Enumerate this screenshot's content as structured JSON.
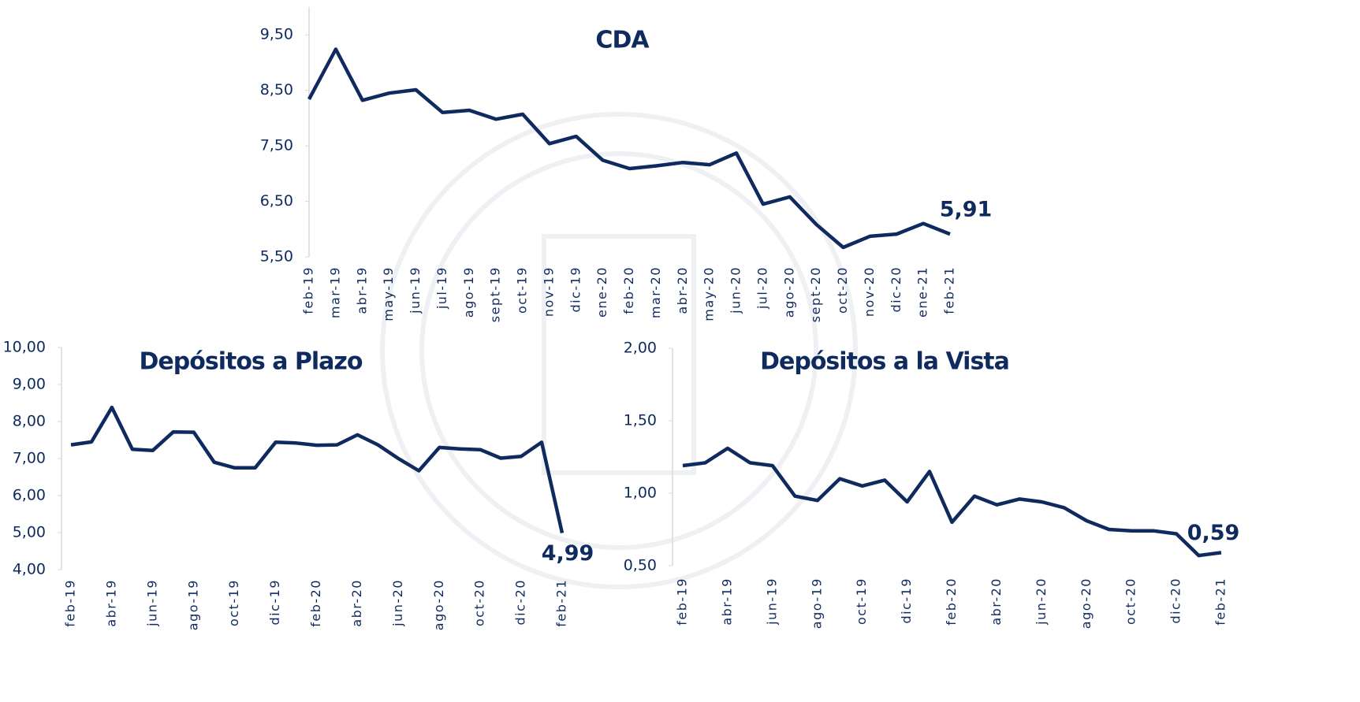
{
  "chart_data": [
    {
      "type": "line",
      "title": "CDA",
      "categories": [
        "feb-19",
        "mar-19",
        "abr-19",
        "may-19",
        "jun-19",
        "jul-19",
        "ago-19",
        "sept-19",
        "oct-19",
        "nov-19",
        "dic-19",
        "ene-20",
        "feb-20",
        "mar-20",
        "abr-20",
        "may-20",
        "jun-20",
        "jul-20",
        "ago-20",
        "sept-20",
        "oct-20",
        "nov-20",
        "dic-20",
        "ene-21",
        "feb-21"
      ],
      "series": [
        {
          "color": "#0f2a5e",
          "values": [
            8.34,
            9.24,
            8.32,
            8.45,
            8.51,
            8.1,
            8.14,
            7.98,
            8.07,
            7.54,
            7.67,
            7.24,
            7.09,
            7.14,
            7.2,
            7.16,
            7.37,
            6.45,
            6.58,
            6.08,
            5.67,
            5.87,
            5.91,
            6.1,
            5.91
          ],
          "value_labels": [
            null,
            null,
            null,
            null,
            null,
            null,
            null,
            null,
            null,
            null,
            null,
            null,
            null,
            null,
            null,
            null,
            null,
            null,
            null,
            null,
            null,
            null,
            null,
            null,
            "5,91"
          ]
        }
      ],
      "ylim": [
        5.5,
        10
      ],
      "yticks": [
        {
          "value": 5.5,
          "label": "5,50"
        },
        {
          "value": 6.5,
          "label": "6,50"
        },
        {
          "value": 7.5,
          "label": "7,50"
        },
        {
          "value": 8.5,
          "label": "8,50"
        },
        {
          "value": 9.5,
          "label": "9,50"
        }
      ]
    },
    {
      "type": "line",
      "title": "Depósitos a Plazo",
      "categories": [
        "feb-19",
        null,
        "abr-19",
        null,
        "jun-19",
        null,
        "ago-19",
        null,
        "oct-19",
        null,
        "dic-19",
        null,
        "feb-20",
        null,
        "abr-20",
        null,
        "jun-20",
        null,
        "ago-20",
        null,
        "oct-20",
        null,
        "dic-20",
        null,
        "feb-21"
      ],
      "series": [
        {
          "color": "#0f2a5e",
          "values": [
            7.37,
            7.45,
            8.38,
            7.25,
            7.22,
            7.72,
            7.71,
            6.9,
            6.75,
            6.75,
            7.44,
            7.42,
            7.36,
            7.37,
            7.64,
            7.37,
            7.0,
            6.67,
            7.3,
            7.26,
            7.24,
            7.01,
            7.06,
            7.44,
            4.99
          ],
          "value_labels": [
            null,
            null,
            null,
            null,
            null,
            null,
            null,
            null,
            null,
            null,
            null,
            null,
            null,
            null,
            null,
            null,
            null,
            null,
            null,
            null,
            null,
            null,
            null,
            null,
            "4,99"
          ]
        }
      ],
      "ylim": [
        4,
        10
      ],
      "yticks": [
        {
          "value": 4,
          "label": "4,00"
        },
        {
          "value": 5,
          "label": "5,00"
        },
        {
          "value": 6,
          "label": "6,00"
        },
        {
          "value": 7,
          "label": "7,00"
        },
        {
          "value": 8,
          "label": "8,00"
        },
        {
          "value": 9,
          "label": "9,00"
        },
        {
          "value": 10,
          "label": "10,00"
        }
      ]
    },
    {
      "type": "line",
      "title": "Depósitos a la Vista",
      "categories": [
        "feb-19",
        null,
        "abr-19",
        null,
        "jun-19",
        null,
        "ago-19",
        null,
        "oct-19",
        null,
        "dic-19",
        null,
        "feb-20",
        null,
        "abr-20",
        null,
        "jun-20",
        null,
        "ago-20",
        null,
        "oct-20",
        null,
        "dic-20",
        null,
        "feb-21"
      ],
      "series": [
        {
          "color": "#0f2a5e",
          "values": [
            1.19,
            1.21,
            1.31,
            1.21,
            1.19,
            0.98,
            0.95,
            1.1,
            1.05,
            1.09,
            0.94,
            1.15,
            0.8,
            0.98,
            0.92,
            0.96,
            0.94,
            0.9,
            0.81,
            0.75,
            0.74,
            0.74,
            0.72,
            0.57,
            0.59
          ],
          "value_labels": [
            null,
            null,
            null,
            null,
            null,
            null,
            null,
            null,
            null,
            null,
            null,
            null,
            null,
            null,
            null,
            null,
            null,
            null,
            null,
            null,
            null,
            null,
            null,
            null,
            "0,59"
          ]
        }
      ],
      "ylim": [
        0.5,
        2
      ],
      "yticks": [
        {
          "value": 0.5,
          "label": "0,50"
        },
        {
          "value": 1,
          "label": "1,00"
        },
        {
          "value": 1.5,
          "label": "1,50"
        },
        {
          "value": 2,
          "label": "2,00"
        }
      ]
    }
  ]
}
